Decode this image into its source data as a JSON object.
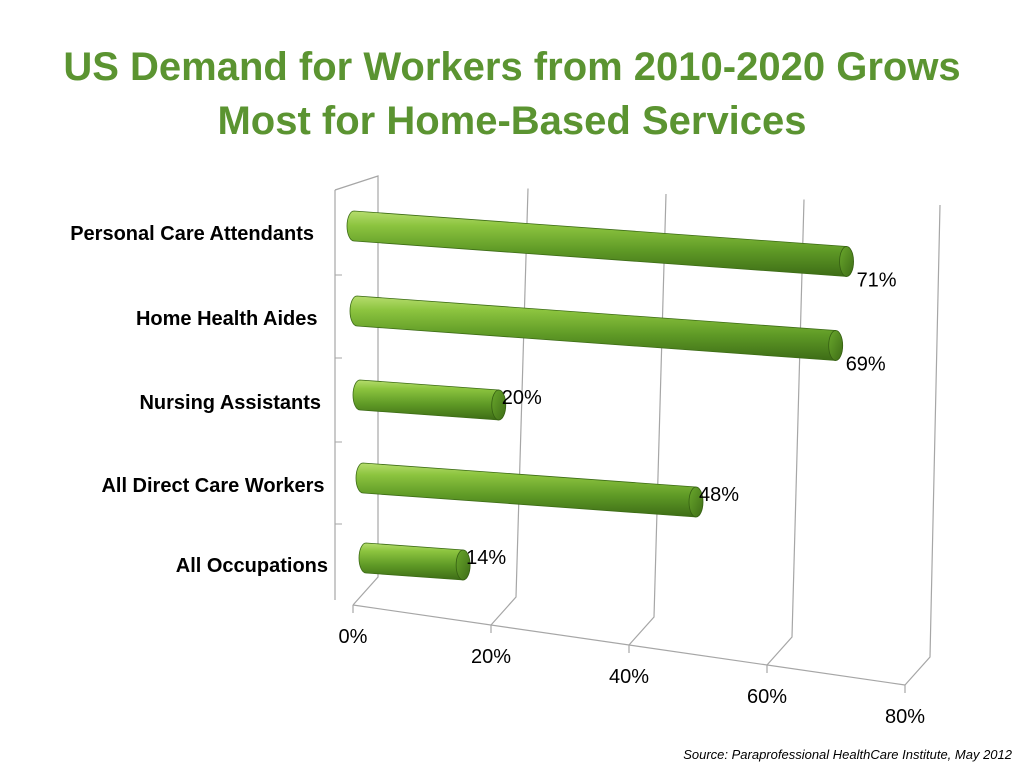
{
  "title_line1": "US Demand for Workers from 2010-2020 Grows",
  "title_line2": "Most for Home-Based Services",
  "source": "Source: Paraprofessional HealthCare Institute, May 2012",
  "colors": {
    "title": "#5b9431",
    "bar_light": "#8cc43f",
    "bar_mid": "#5f9a26",
    "bar_dark": "#3d6c16",
    "bar_cap": "#4e8420",
    "axis": "#a6a6a6"
  },
  "chart_data": {
    "type": "bar",
    "orientation": "horizontal",
    "style": "3d-cylinder",
    "categories": [
      "Personal Care Attendants",
      "Home Health Aides",
      "Nursing Assistants",
      "All Direct Care Workers",
      "All Occupations"
    ],
    "values": [
      71,
      69,
      20,
      48,
      14
    ],
    "value_labels": [
      "71%",
      "69%",
      "20%",
      "48%",
      "14%"
    ],
    "xlim": [
      0,
      80
    ],
    "x_ticks": [
      0,
      20,
      40,
      60,
      80
    ],
    "x_tick_labels": [
      "0%",
      "20%",
      "40%",
      "60%",
      "80%"
    ],
    "grid": true,
    "legend": "none"
  }
}
